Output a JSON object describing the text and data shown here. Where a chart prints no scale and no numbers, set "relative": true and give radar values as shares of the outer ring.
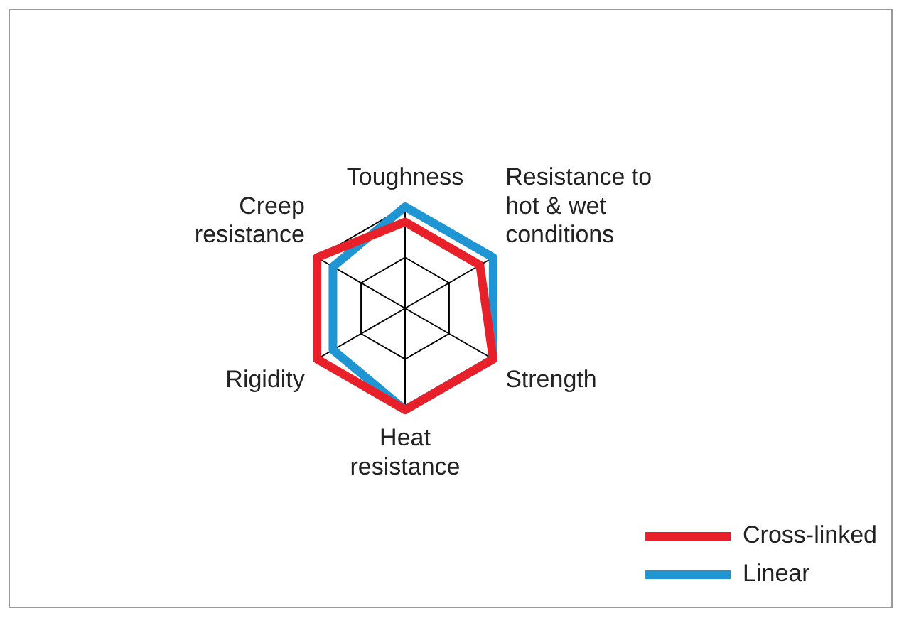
{
  "chart_data": {
    "type": "radar",
    "relative": true,
    "categories": [
      "Toughness",
      "Resistance to hot & wet conditions",
      "Strength",
      "Heat resistance",
      "Rigidity",
      "Creep resistance"
    ],
    "series": [
      {
        "name": "Cross-linked",
        "color": "#e8202a",
        "values": [
          0.85,
          0.85,
          1,
          1,
          1,
          1
        ]
      },
      {
        "name": "Linear",
        "color": "#1f95d4",
        "values": [
          1,
          1,
          1,
          1,
          0.82,
          0.82
        ]
      }
    ],
    "legend": "bottom right",
    "marker": "none",
    "line_style": "solid",
    "grid": true
  }
}
